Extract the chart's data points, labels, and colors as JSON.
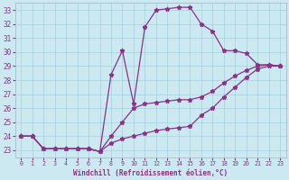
{
  "xlabel": "Windchill (Refroidissement éolien,°C)",
  "background_color": "#cce8f0",
  "line_color": "#883388",
  "hours": [
    0,
    1,
    2,
    3,
    4,
    5,
    6,
    7,
    8,
    9,
    10,
    11,
    12,
    13,
    14,
    15,
    16,
    17,
    18,
    19,
    20,
    21,
    22,
    23
  ],
  "temp_line1": [
    24.0,
    24.0,
    23.1,
    23.1,
    23.1,
    23.1,
    23.1,
    22.9,
    28.4,
    30.1,
    26.3,
    31.8,
    33.0,
    33.1,
    33.2,
    33.2,
    32.0,
    31.5,
    30.1,
    30.1,
    29.9,
    29.1,
    29.1,
    29.0
  ],
  "temp_line2": [
    24.0,
    24.0,
    23.1,
    23.1,
    23.1,
    23.1,
    23.1,
    22.9,
    24.0,
    25.0,
    26.0,
    26.3,
    26.4,
    26.5,
    26.6,
    26.6,
    26.8,
    27.2,
    27.8,
    28.3,
    28.7,
    29.0,
    29.1,
    29.0
  ],
  "temp_line3": [
    24.0,
    24.0,
    23.1,
    23.1,
    23.1,
    23.1,
    23.1,
    22.9,
    23.5,
    23.8,
    24.0,
    24.2,
    24.4,
    24.5,
    24.6,
    24.7,
    25.5,
    26.0,
    26.8,
    27.5,
    28.2,
    28.8,
    29.0,
    29.0
  ],
  "ylim": [
    22.5,
    33.5
  ],
  "yticks": [
    23,
    24,
    25,
    26,
    27,
    28,
    29,
    30,
    31,
    32,
    33
  ],
  "xlim": [
    -0.5,
    23.5
  ],
  "xticks": [
    0,
    1,
    2,
    3,
    4,
    5,
    6,
    7,
    8,
    9,
    10,
    11,
    12,
    13,
    14,
    15,
    16,
    17,
    18,
    19,
    20,
    21,
    22,
    23
  ]
}
